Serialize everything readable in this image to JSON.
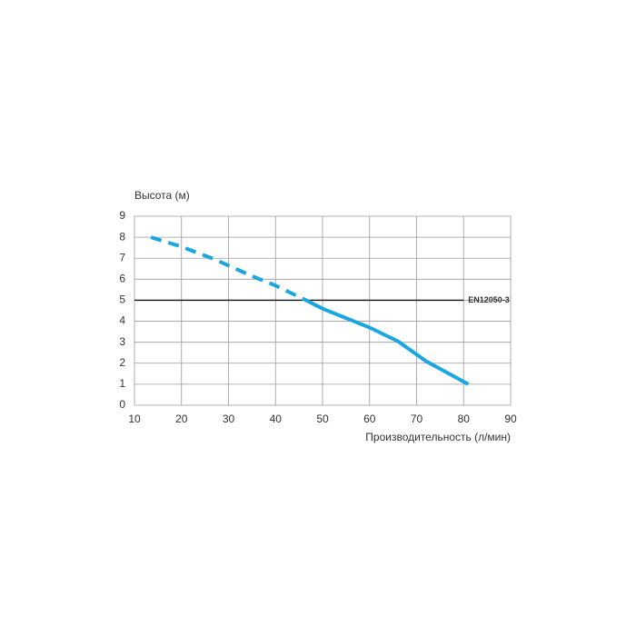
{
  "chart_data": {
    "type": "line",
    "y_label": "Высота (м)",
    "x_label": "Производительность (л/мин)",
    "xlim": [
      10,
      90
    ],
    "xticks": [
      10,
      20,
      30,
      40,
      50,
      60,
      70,
      80,
      90
    ],
    "ylim": [
      0,
      9
    ],
    "yticks": [
      0,
      1,
      2,
      3,
      4,
      5,
      6,
      7,
      8,
      9
    ],
    "grid": true,
    "series": [
      {
        "color": "#1aa7e1",
        "dashed": true,
        "x": [
          13.5,
          20,
          27,
          35,
          40,
          46.5
        ],
        "values": [
          8,
          7.55,
          6.95,
          6.15,
          5.7,
          5
        ]
      },
      {
        "color": "#1aa7e1",
        "dashed": false,
        "x": [
          46.5,
          50,
          55,
          60,
          66,
          72,
          81
        ],
        "values": [
          5,
          4.6,
          4.15,
          3.7,
          3.05,
          2.1,
          1
        ]
      }
    ],
    "reference_line": {
      "label": "EN12050-3",
      "value": 5,
      "x_end": 80,
      "color": "#111111"
    }
  }
}
